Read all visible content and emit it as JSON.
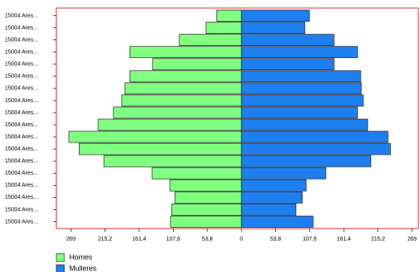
{
  "chart_data": {
    "type": "pyramid",
    "categories": [
      "15004 Ares...",
      "15004 Ares...",
      "15004 Ares...",
      "15004 Ares...",
      "15004 Ares...",
      "15004 Ares...",
      "15004 Ares...",
      "15004 Ares...",
      "15004 Ares...",
      "15004 Ares...",
      "15004 Ares...",
      "15004 Ares...",
      "15004 Ares...",
      "15004 Ares...",
      "15004 Ares...",
      "15004 Ares...",
      "15004 Ares...",
      "15004 Ares..."
    ],
    "series": [
      {
        "name": "Homes",
        "color": "#80ff80",
        "side": "left",
        "values": [
          39,
          56,
          98,
          176,
          140,
          176,
          184,
          189,
          202,
          226,
          272,
          256,
          217,
          141,
          113,
          105,
          110,
          112
        ]
      },
      {
        "name": "Mulleres",
        "color": "#1e7ff0",
        "side": "right",
        "values": [
          107,
          100,
          146,
          183,
          146,
          188,
          189,
          192,
          183,
          199,
          231,
          235,
          204,
          133,
          102,
          96,
          86,
          113
        ]
      }
    ],
    "xlim": [
      -292,
      279
    ],
    "xticks": [
      {
        "value": -269,
        "label": "269"
      },
      {
        "value": -215.2,
        "label": "215,2"
      },
      {
        "value": -161.4,
        "label": "161,4"
      },
      {
        "value": -107.6,
        "label": "107,6"
      },
      {
        "value": -53.8,
        "label": "53,8"
      },
      0,
      {
        "value": 53.8,
        "label": "53,8"
      },
      {
        "value": 107.6,
        "label": "107,6"
      },
      {
        "value": 161.4,
        "label": "161,4"
      },
      {
        "value": 215.2,
        "label": "215,2"
      },
      269
    ],
    "legend": "bottom-left"
  }
}
